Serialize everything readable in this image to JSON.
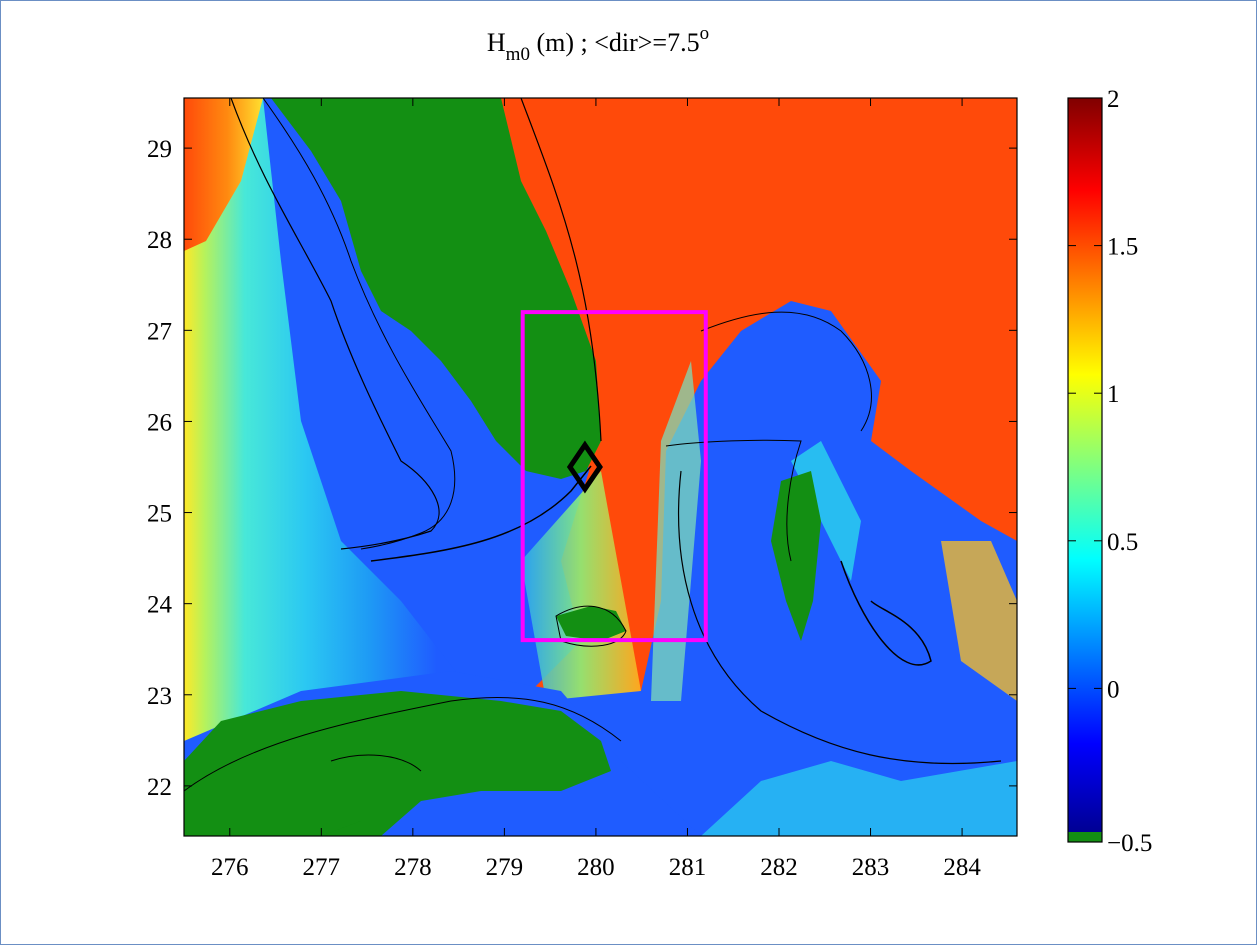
{
  "chart_data": {
    "type": "heatmap",
    "title_main": "H",
    "title_sub": "m0",
    "title_rest": " (m) ; <dir>=7.5",
    "title_sup": "o",
    "xlabel": "",
    "ylabel": "",
    "xlim": [
      275.5,
      284.6
    ],
    "ylim": [
      21.45,
      29.55
    ],
    "x_ticks": [
      276,
      277,
      278,
      279,
      280,
      281,
      282,
      283,
      284
    ],
    "y_ticks": [
      22,
      23,
      24,
      25,
      26,
      27,
      28,
      29
    ],
    "colorbar": {
      "range": [
        -0.5,
        2
      ],
      "ticks": [
        -0.5,
        0,
        0.5,
        1,
        1.5,
        2
      ],
      "tick_labels": [
        "−0.5",
        "0",
        "0.5",
        "1",
        "1.5",
        "2"
      ],
      "colormap": "jet",
      "land_color": "#138f13"
    },
    "box": {
      "x": [
        279.2,
        281.2
      ],
      "y": [
        23.6,
        27.2
      ],
      "color": "#ff00ff"
    },
    "marker": {
      "shape": "diamond",
      "x": 279.88,
      "y": 25.5,
      "color": "#000000"
    },
    "colors": {
      "open_ocean": "#ff4a0a",
      "shelf_water": "#1f5cff",
      "near_shore": "#2ad6ee"
    }
  }
}
